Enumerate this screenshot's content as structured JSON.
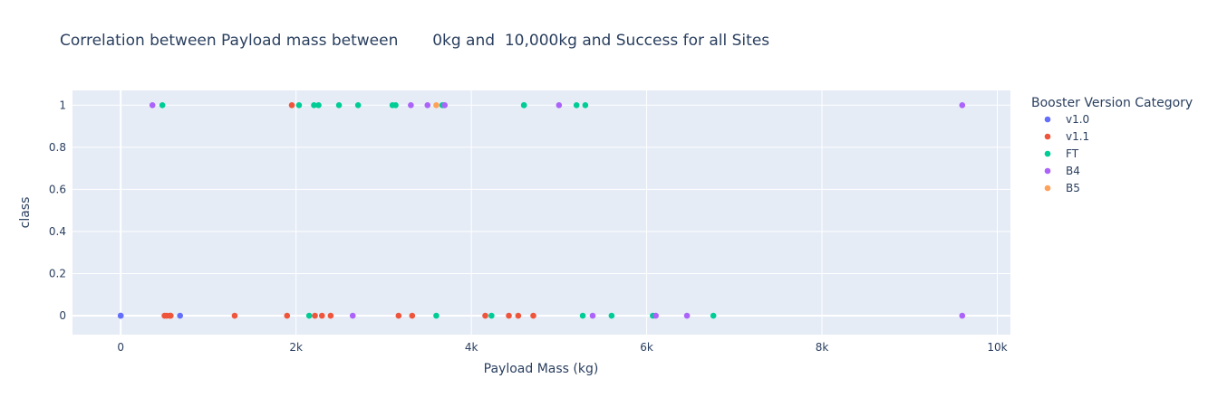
{
  "chart_data": {
    "type": "scatter",
    "title": "Correlation between Payload mass between       0kg and  10,000kg and Success for all Sites",
    "xlabel": "Payload Mass (kg)",
    "ylabel": "class",
    "xlim": [
      -550,
      10150
    ],
    "ylim": [
      -0.09,
      1.07
    ],
    "x_ticks": [
      0,
      2000,
      4000,
      6000,
      8000,
      10000
    ],
    "x_tick_labels": [
      "0",
      "2k",
      "4k",
      "6k",
      "8k",
      "10k"
    ],
    "y_ticks": [
      0,
      0.2,
      0.4,
      0.6,
      0.8,
      1
    ],
    "y_tick_labels": [
      "0",
      "0.2",
      "0.4",
      "0.6",
      "0.8",
      "1"
    ],
    "legend_title": "Booster Version Category",
    "legend_position": "right",
    "series": [
      {
        "name": "v1.0",
        "color": "#636efa",
        "x": [
          0,
          0,
          677
        ],
        "y": [
          0,
          0,
          0
        ]
      },
      {
        "name": "v1.1",
        "color": "#EF553B",
        "x": [
          1952,
          500,
          525,
          560,
          570,
          1300,
          1898,
          2216,
          2296,
          2395,
          3170,
          3325,
          4159,
          4428,
          4535,
          4707
        ],
        "y": [
          1,
          0,
          0,
          0,
          0,
          0,
          0,
          0,
          0,
          0,
          0,
          0,
          0,
          0,
          0,
          0
        ]
      },
      {
        "name": "FT",
        "color": "#00cc96",
        "x": [
          475,
          2034,
          2205,
          2257,
          2490,
          2708,
          3100,
          3136,
          3669,
          4600,
          4600,
          5200,
          5300,
          2150,
          3600,
          4230,
          5271,
          5600,
          6070,
          6761
        ],
        "y": [
          1,
          1,
          1,
          1,
          1,
          1,
          1,
          1,
          1,
          1,
          1,
          1,
          1,
          0,
          0,
          0,
          0,
          0,
          0,
          0
        ]
      },
      {
        "name": "B4",
        "color": "#ab63fa",
        "x": [
          362,
          3310,
          3500,
          3696,
          5000,
          9600,
          2647,
          5384,
          6104,
          6460,
          9600
        ],
        "y": [
          1,
          1,
          1,
          1,
          1,
          1,
          0,
          0,
          0,
          0,
          0
        ]
      },
      {
        "name": "B5",
        "color": "#FFA15A",
        "x": [
          3600
        ],
        "y": [
          1
        ]
      }
    ]
  }
}
